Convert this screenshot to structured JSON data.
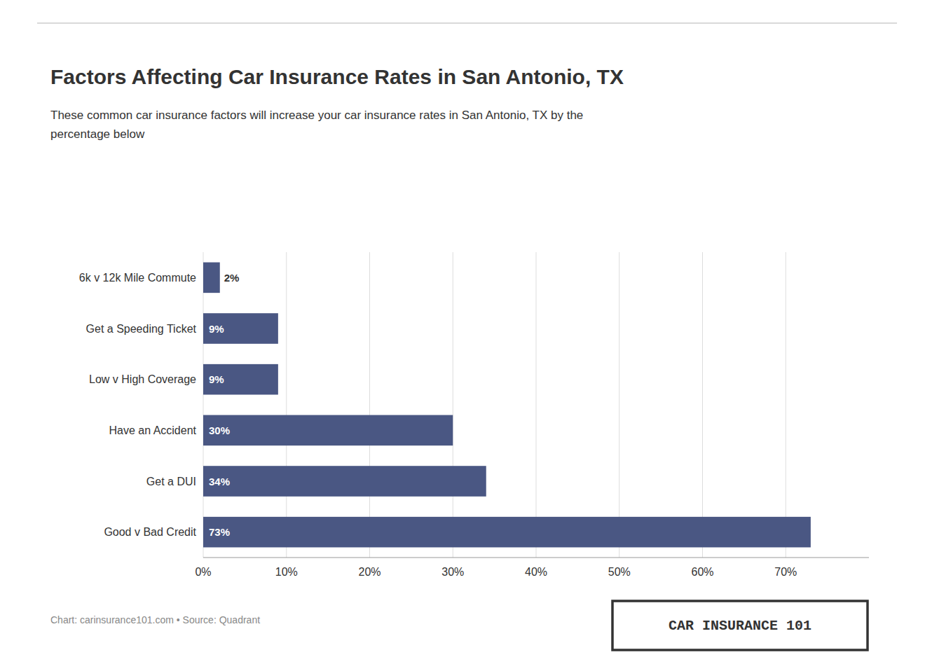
{
  "chart_data": {
    "type": "bar",
    "orientation": "horizontal",
    "title": "Factors Affecting Car Insurance Rates in San Antonio, TX",
    "subtitle": "These common car insurance factors will increase your car insurance rates in San Antonio, TX by the\npercentage below",
    "categories": [
      "Good v Bad Credit",
      "Get a DUI",
      "Have an Accident",
      "Low v High Coverage",
      "Get a Speeding Ticket",
      "6k v 12k Mile Commute"
    ],
    "values": [
      73,
      34,
      30,
      9,
      9,
      2
    ],
    "value_labels": [
      "73%",
      "34%",
      "30%",
      "9%",
      "9%",
      "2%"
    ],
    "data_labels": true,
    "color": "#4a5783",
    "xlim": [
      0,
      80
    ],
    "xticks": [
      {
        "value": 0,
        "label": "0%"
      },
      {
        "value": 10,
        "label": "10%"
      },
      {
        "value": 20,
        "label": "20%"
      },
      {
        "value": 30,
        "label": "30%"
      },
      {
        "value": 40,
        "label": "40%"
      },
      {
        "value": 50,
        "label": "50%"
      },
      {
        "value": 60,
        "label": "60%"
      },
      {
        "value": 70,
        "label": "70%"
      }
    ],
    "grid": true,
    "annotations": [
      "Chart: carinsurance101.com • Source: Quadrant",
      "CAR INSURANCE 101"
    ]
  }
}
